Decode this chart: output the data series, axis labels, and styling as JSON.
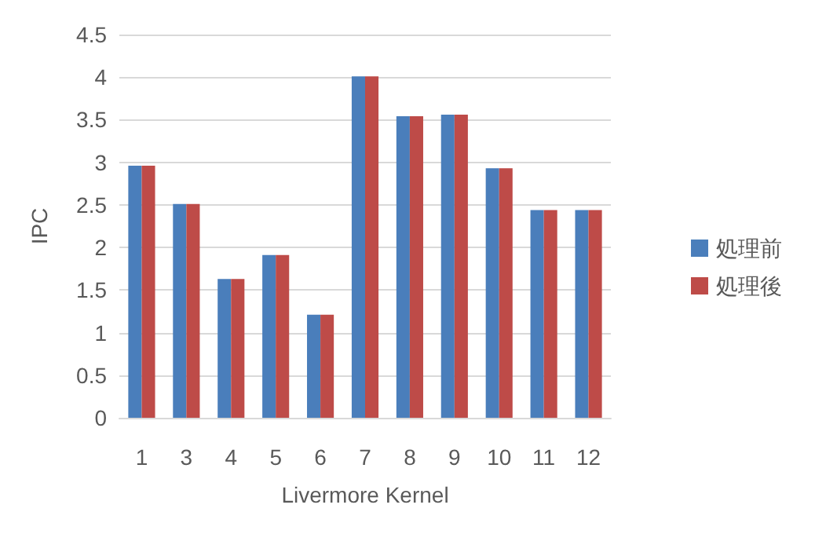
{
  "chart_data": {
    "type": "bar",
    "xlabel": "Livermore Kernel",
    "ylabel": "IPC",
    "categories": [
      "1",
      "3",
      "4",
      "5",
      "6",
      "7",
      "8",
      "9",
      "10",
      "11",
      "12"
    ],
    "series": [
      {
        "name": "処理前",
        "color": "#4a7ebb",
        "values": [
          2.96,
          2.51,
          1.63,
          1.91,
          1.21,
          4.01,
          3.54,
          3.56,
          2.93,
          2.44,
          2.44
        ]
      },
      {
        "name": "処理後",
        "color": "#be4b48",
        "values": [
          2.96,
          2.51,
          1.63,
          1.91,
          1.21,
          4.01,
          3.54,
          3.56,
          2.93,
          2.44,
          2.44
        ]
      }
    ],
    "ylim": [
      0,
      4.5
    ],
    "yticks": [
      0,
      0.5,
      1,
      1.5,
      2,
      2.5,
      3,
      3.5,
      4,
      4.5
    ],
    "grid": "y",
    "legend": "right"
  }
}
